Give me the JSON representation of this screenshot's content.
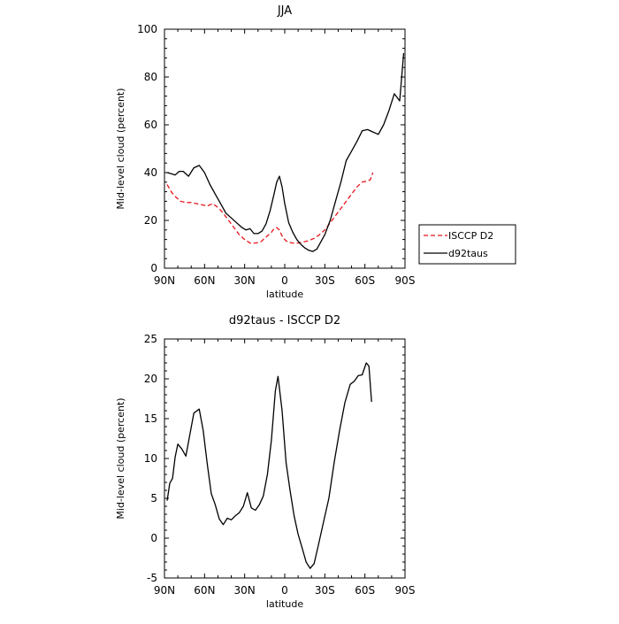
{
  "chart_data": [
    {
      "type": "line",
      "title": "JJA",
      "xlabel": "latitude",
      "ylabel": "Mid-level cloud (percent)",
      "xlim": [
        90,
        -90
      ],
      "ylim": [
        0,
        100
      ],
      "xticks": [
        90,
        60,
        30,
        0,
        -30,
        -60,
        -90
      ],
      "xtick_labels": [
        "90N",
        "60N",
        "30N",
        "0",
        "30S",
        "60S",
        "90S"
      ],
      "yticks": [
        0,
        20,
        40,
        60,
        80,
        100
      ],
      "ytick_labels": [
        "0",
        "20",
        "40",
        "60",
        "80",
        "100"
      ],
      "legend_position": "outside-right",
      "series": [
        {
          "name": "ISCCP D2",
          "color": "#e8141c",
          "dash": "dashed",
          "x": [
            88,
            85,
            82,
            78,
            74,
            70,
            66,
            62,
            58,
            54,
            50,
            46,
            42,
            38,
            34,
            30,
            26,
            22,
            18,
            14,
            10,
            8,
            6,
            4,
            2,
            0,
            -2,
            -6,
            -10,
            -14,
            -18,
            -22,
            -26,
            -30,
            -34,
            -38,
            -42,
            -46,
            -50,
            -54,
            -58,
            -62,
            -64,
            -66
          ],
          "y": [
            35,
            32,
            30,
            28,
            27.5,
            27.5,
            27,
            26.5,
            26,
            27,
            25.5,
            23,
            20,
            17,
            14,
            12,
            10.5,
            10.5,
            11,
            13,
            15,
            16.5,
            17,
            16,
            13.5,
            12,
            11,
            10.5,
            10.5,
            11,
            11.5,
            12.5,
            14,
            16,
            19,
            22,
            25,
            28,
            31,
            34,
            36,
            36.5,
            37,
            40
          ]
        },
        {
          "name": "d92taus",
          "color": "#000000",
          "dash": "solid",
          "x": [
            88,
            85,
            82,
            79,
            76,
            72,
            68,
            64,
            60,
            56,
            52,
            48,
            44,
            40,
            36,
            32,
            29,
            26,
            23,
            20,
            17,
            14,
            11,
            8,
            6,
            4,
            2,
            0,
            -3,
            -6,
            -9,
            -12,
            -15,
            -18,
            -21,
            -24,
            -27,
            -30,
            -34,
            -38,
            -42,
            -46,
            -50,
            -54,
            -58,
            -62,
            -66,
            -70,
            -74,
            -78,
            -82,
            -86,
            -89
          ],
          "y": [
            40,
            39.5,
            39,
            40.5,
            40.5,
            38.5,
            42,
            43,
            40,
            35,
            31,
            27,
            23,
            21,
            19,
            17,
            16,
            16.5,
            14.5,
            14.5,
            15.5,
            18.5,
            24,
            31,
            36,
            38.5,
            34,
            27,
            19,
            15,
            12,
            10,
            8.5,
            7.5,
            7,
            8,
            11,
            14,
            20,
            28,
            36,
            45,
            49,
            53,
            57.5,
            58,
            57,
            56,
            60,
            66,
            73,
            70,
            90
          ]
        }
      ]
    },
    {
      "type": "line",
      "title": "d92taus - ISCCP D2",
      "xlabel": "latitude",
      "ylabel": "Mid-level cloud (percent)",
      "xlim": [
        90,
        -90
      ],
      "ylim": [
        -5,
        25
      ],
      "xticks": [
        90,
        60,
        30,
        0,
        -30,
        -60,
        -90
      ],
      "xtick_labels": [
        "90N",
        "60N",
        "30N",
        "0",
        "30S",
        "60S",
        "90S"
      ],
      "yticks": [
        -5,
        0,
        5,
        10,
        15,
        20,
        25
      ],
      "ytick_labels": [
        "-5",
        "0",
        "5",
        "10",
        "15",
        "20",
        "25"
      ],
      "series": [
        {
          "color": "#000000",
          "dash": "solid",
          "x": [
            88,
            86,
            84,
            82,
            80,
            77,
            74,
            71,
            68,
            64,
            61,
            58,
            55,
            52,
            49,
            46,
            43,
            40,
            37,
            34,
            31,
            28,
            25,
            22,
            19,
            16,
            13,
            10,
            7,
            5,
            2,
            -1,
            -4,
            -7,
            -10,
            -13,
            -16,
            -19,
            -22,
            -25,
            -29,
            -33,
            -37,
            -41,
            -45,
            -49,
            -52,
            -55,
            -58,
            -61,
            -63,
            -65
          ],
          "y": [
            4.7,
            6.9,
            7.5,
            10.2,
            11.8,
            11.2,
            10.3,
            13.0,
            15.7,
            16.2,
            13.5,
            9.3,
            5.6,
            4.2,
            2.4,
            1.7,
            2.5,
            2.3,
            2.8,
            3.2,
            4.0,
            5.7,
            3.8,
            3.5,
            4.2,
            5.3,
            8.0,
            12.3,
            18.5,
            20.3,
            16.0,
            9.5,
            6.0,
            2.8,
            0.5,
            -1.2,
            -3.0,
            -3.8,
            -3.2,
            -1.0,
            2.0,
            5.0,
            9.5,
            13.5,
            17.0,
            19.3,
            19.7,
            20.4,
            20.5,
            22.0,
            21.6,
            17.1
          ]
        }
      ]
    }
  ]
}
